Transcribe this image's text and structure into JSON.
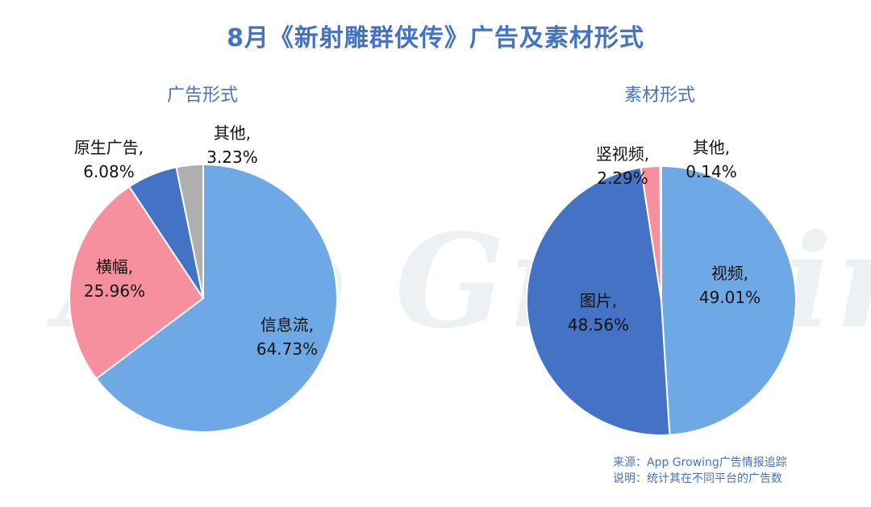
{
  "title": "8月《新射雕群侠传》广告及素材形式",
  "watermark": "App Growing",
  "footer": {
    "source": "来源：App Growing广告情报追踪",
    "note": "说明：统计其在不同平台的广告数"
  },
  "colors": {
    "title": "#4472C4",
    "light_blue": "#6EA9E6",
    "dark_blue": "#4472C4",
    "pink": "#F7909E",
    "gray": "#AFAFAF"
  },
  "chart_data": [
    {
      "type": "pie",
      "title": "广告形式",
      "slices": [
        {
          "label": "信息流",
          "value": 64.73,
          "display": "64.73%",
          "color": "#6EA9E6"
        },
        {
          "label": "横幅",
          "value": 25.96,
          "display": "25.96%",
          "color": "#F7909E"
        },
        {
          "label": "原生广告",
          "value": 6.08,
          "display": "6.08%",
          "color": "#4472C4"
        },
        {
          "label": "其他",
          "value": 3.23,
          "display": "3.23%",
          "color": "#AFAFAF"
        }
      ]
    },
    {
      "type": "pie",
      "title": "素材形式",
      "slices": [
        {
          "label": "视频",
          "value": 49.01,
          "display": "49.01%",
          "color": "#6EA9E6"
        },
        {
          "label": "图片",
          "value": 48.56,
          "display": "48.56%",
          "color": "#4472C4"
        },
        {
          "label": "竖视频",
          "value": 2.29,
          "display": "2.29%",
          "color": "#F7909E"
        },
        {
          "label": "其他",
          "value": 0.14,
          "display": "0.14%",
          "color": "#AFAFAF"
        }
      ]
    }
  ]
}
